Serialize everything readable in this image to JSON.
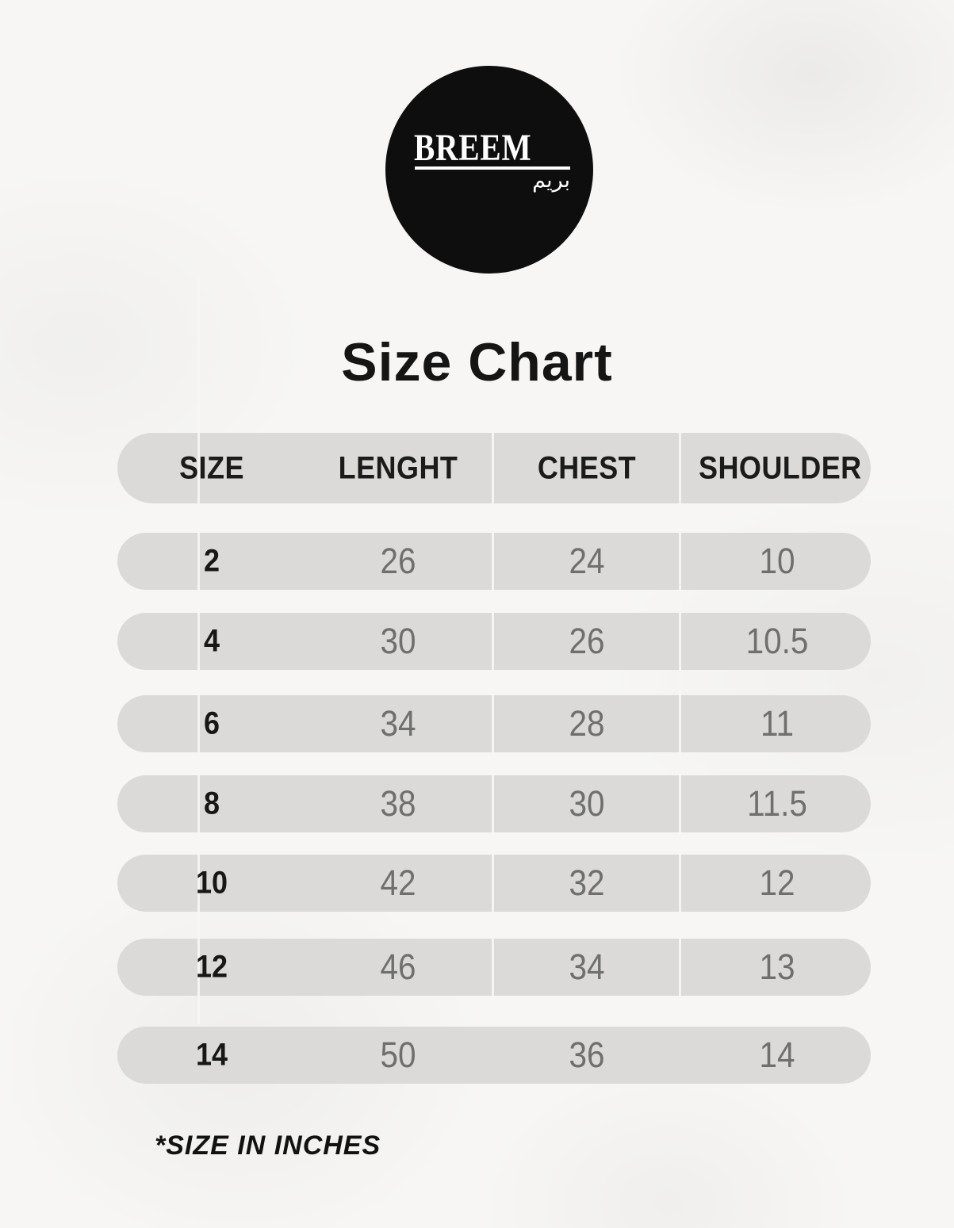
{
  "logo": {
    "brand": "BREEM",
    "brand_arabic": "بريم"
  },
  "title": "Size Chart",
  "footnote": "*SIZE IN INCHES",
  "table": {
    "headers": [
      "SIZE",
      "LENGHT",
      "CHEST",
      "SHOULDER"
    ],
    "rows": [
      [
        "2",
        "26",
        "24",
        "10"
      ],
      [
        "4",
        "30",
        "26",
        "10.5"
      ],
      [
        "6",
        "34",
        "28",
        "11"
      ],
      [
        "8",
        "38",
        "30",
        "11.5"
      ],
      [
        "10",
        "42",
        "32",
        "12"
      ],
      [
        "12",
        "46",
        "34",
        "13"
      ],
      [
        "14",
        "50",
        "36",
        "14"
      ]
    ]
  },
  "colors": {
    "background": "#f7f6f4",
    "pill": "#dbdad8",
    "divider": "#f7f6f3",
    "heading_text": "#1b1b1b",
    "value_text": "#6f6f6f",
    "logo_background": "#0e0e0e",
    "logo_text": "#ffffff"
  },
  "chart_data": {
    "type": "table",
    "title": "Size Chart",
    "columns": [
      "SIZE",
      "LENGHT",
      "CHEST",
      "SHOULDER"
    ],
    "rows": [
      [
        2,
        26,
        24,
        10
      ],
      [
        4,
        30,
        26,
        10.5
      ],
      [
        6,
        34,
        28,
        11
      ],
      [
        8,
        38,
        30,
        11.5
      ],
      [
        10,
        42,
        32,
        12
      ],
      [
        12,
        46,
        34,
        13
      ],
      [
        14,
        50,
        36,
        14
      ]
    ],
    "units": "inches",
    "note": "*SIZE IN INCHES",
    "legend_position": "none",
    "grid": false
  }
}
